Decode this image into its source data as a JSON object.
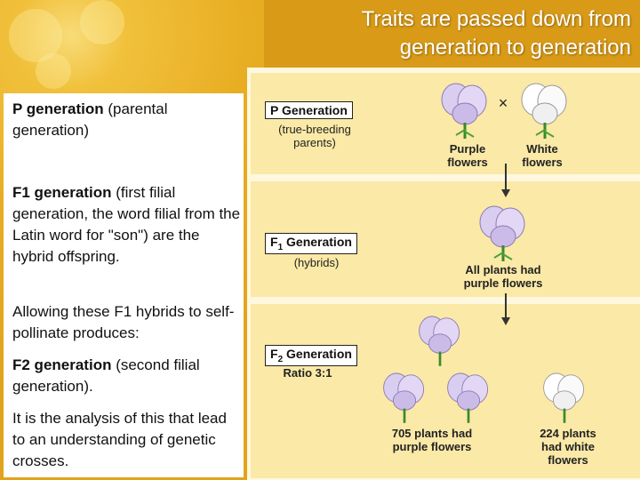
{
  "title": {
    "line1": "Traits are passed down from",
    "line2": "generation to generation"
  },
  "left_text": {
    "p_bold": "P generation",
    "p_rest": " (parental generation)",
    "f1_bold": "F1 generation",
    "f1_rest": " (first filial generation, the word filial from the Latin word for \"son\") are the hybrid offspring.",
    "allowing": "Allowing these F1 hybrids to self-pollinate produces:",
    "f2_bold": "F2 generation",
    "f2_rest": " (second filial generation).",
    "analysis": "It is the analysis of this that lead to an understanding of genetic crosses."
  },
  "figure": {
    "p_label": "P Generation",
    "p_sub": "(true-breeding parents)",
    "cross": "×",
    "purple_caption": "Purple flowers",
    "white_caption": "White flowers",
    "f1_label_pre": "F",
    "f1_label_sub": "1",
    "f1_label_post": " Generation",
    "f1_sub": "(hybrids)",
    "f1_caption": "All plants had purple flowers",
    "f2_label_pre": "F",
    "f2_label_sub": "2",
    "f2_label_post": " Generation",
    "f2_sub": "Ratio 3:1",
    "f2_purple_caption": "705 plants had purple flowers",
    "f2_white_caption": "224 plants had white flowers"
  },
  "colors": {
    "purple_flower": "#d9cdf0",
    "white_flower": "#ffffff",
    "band": "#fbe9a7"
  }
}
